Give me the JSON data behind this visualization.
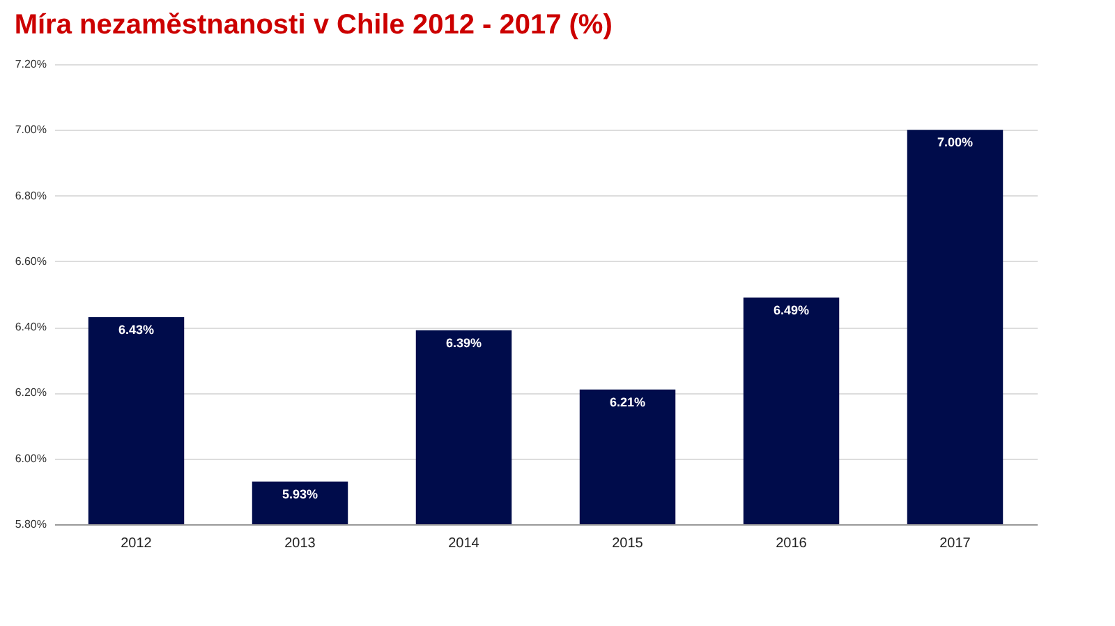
{
  "chart_data": {
    "type": "bar",
    "title": "Míra nezaměstnanosti v Chile 2012 - 2017 (%)",
    "categories": [
      "2012",
      "2013",
      "2014",
      "2015",
      "2016",
      "2017"
    ],
    "values": [
      6.43,
      5.93,
      6.39,
      6.21,
      6.49,
      7.0
    ],
    "value_labels": [
      "6.43%",
      "5.93%",
      "6.39%",
      "6.21%",
      "6.49%",
      "7.00%"
    ],
    "color": "#000c4b",
    "ylim": [
      5.8,
      7.2
    ],
    "yticks": [
      {
        "value": 5.8,
        "label": "5.80%"
      },
      {
        "value": 6.0,
        "label": "6.00%"
      },
      {
        "value": 6.2,
        "label": "6.20%"
      },
      {
        "value": 6.4,
        "label": "6.40%"
      },
      {
        "value": 6.6,
        "label": "6.60%"
      },
      {
        "value": 6.8,
        "label": "6.80%"
      },
      {
        "value": 7.0,
        "label": "7.00%"
      },
      {
        "value": 7.2,
        "label": "7.20%"
      }
    ],
    "grid": true
  }
}
